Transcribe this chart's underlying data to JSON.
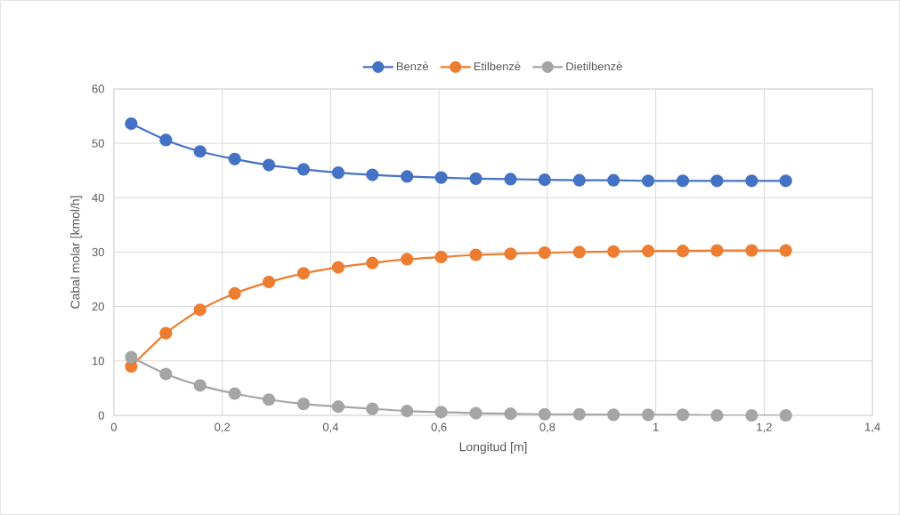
{
  "chart_data": {
    "type": "line",
    "xlabel": "Longitud [m]",
    "ylabel": "Cabal molar [kmol/h]",
    "x": [
      0.032,
      0.096,
      0.159,
      0.223,
      0.286,
      0.35,
      0.414,
      0.477,
      0.541,
      0.604,
      0.668,
      0.732,
      0.795,
      0.859,
      0.922,
      0.986,
      1.05,
      1.113,
      1.177,
      1.24
    ],
    "series": [
      {
        "name": "Benzè",
        "color": "#4472c4",
        "values": [
          53.6,
          50.6,
          48.5,
          47.1,
          46.0,
          45.2,
          44.6,
          44.2,
          43.9,
          43.7,
          43.5,
          43.4,
          43.3,
          43.2,
          43.2,
          43.1,
          43.1,
          43.1,
          43.1,
          43.1
        ]
      },
      {
        "name": "Etilbenzè",
        "color": "#ed7d31",
        "values": [
          9.0,
          15.1,
          19.4,
          22.4,
          24.5,
          26.1,
          27.2,
          28.0,
          28.7,
          29.1,
          29.5,
          29.7,
          29.9,
          30.0,
          30.1,
          30.2,
          30.2,
          30.3,
          30.3,
          30.3
        ]
      },
      {
        "name": "Dietilbenzè",
        "color": "#a5a5a5",
        "values": [
          10.7,
          7.6,
          5.5,
          4.0,
          2.9,
          2.1,
          1.6,
          1.2,
          0.8,
          0.6,
          0.4,
          0.3,
          0.2,
          0.2,
          0.1,
          0.1,
          0.1,
          0.0,
          0.0,
          0.0
        ]
      }
    ],
    "xlim": [
      0,
      1.4
    ],
    "xticks": [
      0,
      {
        "value": 0.2,
        "label": "0,2"
      },
      {
        "value": 0.4,
        "label": "0,4"
      },
      {
        "value": 0.6,
        "label": "0,6"
      },
      {
        "value": 0.8,
        "label": "0,8"
      },
      1,
      {
        "value": 1.2,
        "label": "1,2"
      },
      {
        "value": 1.4,
        "label": "1,4"
      }
    ],
    "ylim": [
      0,
      60
    ],
    "yticks": [
      0,
      10,
      20,
      30,
      40,
      50,
      60
    ],
    "grid": true,
    "legend": "top",
    "marker": "circle",
    "line_style": "solid"
  }
}
